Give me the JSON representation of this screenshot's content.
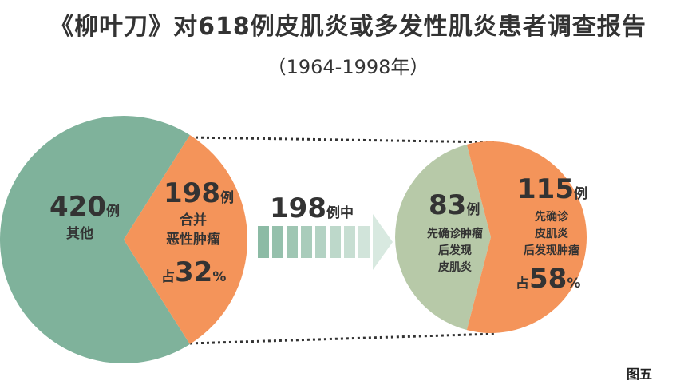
{
  "title": "《柳叶刀》对618例皮肌炎或多发性肌炎患者调查报告",
  "subtitle": "（1964-1998年）",
  "figure_label": "图五",
  "colors": {
    "green": "#7fb29b",
    "orange": "#f4945a",
    "sage": "#b7c9a8",
    "arrow": "#cfe3d8",
    "text": "#333333"
  },
  "chart_data": [
    {
      "type": "pie",
      "total": 618,
      "slices": [
        {
          "label": "其他",
          "value": 420,
          "unit": "例"
        },
        {
          "label": "合并恶性肿瘤",
          "value": 198,
          "unit": "例",
          "percent": 32
        }
      ]
    },
    {
      "type": "pie",
      "total": 198,
      "slices": [
        {
          "label": "先确诊肿瘤后发现皮肌炎",
          "value": 83,
          "unit": "例"
        },
        {
          "label": "先确诊皮肌炎后发现肿瘤",
          "value": 115,
          "unit": "例",
          "percent": 58
        }
      ]
    }
  ],
  "left_pie": {
    "other_value": "420",
    "other_unit": "例",
    "other_label": "其他",
    "cancer_value": "198",
    "cancer_unit": "例",
    "cancer_line1": "合并",
    "cancer_line2": "恶性肿瘤",
    "pct_prefix": "占",
    "pct_value": "32",
    "pct_unit": "%"
  },
  "arrow": {
    "value": "198",
    "unit": "例中"
  },
  "right_pie": {
    "a_value": "83",
    "a_unit": "例",
    "a_line1": "先确诊肿瘤",
    "a_line2": "后发现",
    "a_line3": "皮肌炎",
    "b_value": "115",
    "b_unit": "例",
    "b_line1": "先确诊",
    "b_line2": "皮肌炎",
    "b_line3": "后发现肿瘤",
    "pct_prefix": "占",
    "pct_value": "58",
    "pct_unit": "%"
  }
}
